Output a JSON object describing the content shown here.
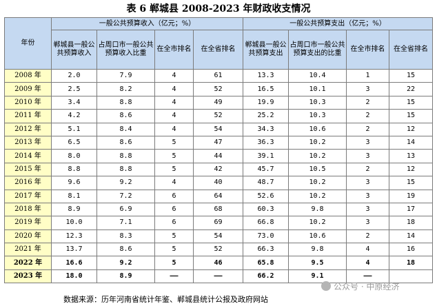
{
  "title": "表 6  郸城县 2008-2023 年财政收支情况",
  "headers": {
    "year": "年份",
    "revenue_group": "一般公共预算收入（亿元；%）",
    "expenditure_group": "一般公共预算支出（亿元；%）",
    "columns": [
      "郸城县一般公共预算收入",
      "占周口市一般公共预算收入比重",
      "在全市排名",
      "在全省排名",
      "郸城县一般公共预算支出",
      "占周口市一般公共预算支出的比重",
      "在全市排名",
      "在全省排名"
    ]
  },
  "rows": [
    {
      "year": "2008 年",
      "cells": [
        "2.0",
        "7.9",
        "4",
        "61",
        "13.3",
        "10.4",
        "1",
        "15"
      ]
    },
    {
      "year": "2009 年",
      "cells": [
        "2.5",
        "8.2",
        "4",
        "52",
        "16.5",
        "10.1",
        "3",
        "22"
      ]
    },
    {
      "year": "2010 年",
      "cells": [
        "3.4",
        "8.8",
        "4",
        "49",
        "19.9",
        "10.3",
        "2",
        "15"
      ]
    },
    {
      "year": "2011 年",
      "cells": [
        "4.2",
        "8.6",
        "4",
        "52",
        "25.2",
        "10.3",
        "2",
        "15"
      ]
    },
    {
      "year": "2012 年",
      "cells": [
        "5.1",
        "8.4",
        "4",
        "54",
        "34.3",
        "10.6",
        "2",
        "12"
      ]
    },
    {
      "year": "2013 年",
      "cells": [
        "6.5",
        "8.6",
        "5",
        "47",
        "36.3",
        "10.2",
        "3",
        "14"
      ]
    },
    {
      "year": "2014 年",
      "cells": [
        "8.0",
        "8.8",
        "5",
        "44",
        "39.1",
        "10.2",
        "3",
        "13"
      ]
    },
    {
      "year": "2015 年",
      "cells": [
        "8.8",
        "8.8",
        "5",
        "42",
        "45.7",
        "10.5",
        "2",
        "12"
      ]
    },
    {
      "year": "2016 年",
      "cells": [
        "9.6",
        "9.2",
        "4",
        "40",
        "48.7",
        "10.2",
        "3",
        "15"
      ]
    },
    {
      "year": "2017 年",
      "cells": [
        "8.1",
        "7.2",
        "6",
        "64",
        "52.6",
        "10.2",
        "3",
        "19"
      ]
    },
    {
      "year": "2018 年",
      "cells": [
        "8.9",
        "6.9",
        "6",
        "68",
        "60.3",
        "9.8",
        "3",
        "17"
      ]
    },
    {
      "year": "2019 年",
      "cells": [
        "10.0",
        "7.1",
        "6",
        "69",
        "66.8",
        "10.2",
        "3",
        "18"
      ]
    },
    {
      "year": "2020 年",
      "cells": [
        "12.3",
        "8.3",
        "5",
        "54",
        "73.0",
        "10.6",
        "2",
        "14"
      ]
    },
    {
      "year": "2021 年",
      "cells": [
        "13.7",
        "8.6",
        "5",
        "52",
        "66.3",
        "9.8",
        "4",
        "16"
      ]
    },
    {
      "year": "2022 年",
      "cells": [
        "16.6",
        "9.2",
        "5",
        "46",
        "65.8",
        "9.5",
        "4",
        "18"
      ]
    },
    {
      "year": "2023 年",
      "cells": [
        "18.0",
        "8.9",
        "——",
        "——",
        "66.2",
        "9.1",
        "——",
        ""
      ]
    }
  ],
  "bold_years": [
    "2022 年",
    "2023 年"
  ],
  "source": "数据来源：历年河南省统计年鉴、郸城县统计公报及政府网站",
  "watermark": "公众号 · 中原经济",
  "colors": {
    "header_bg": "#c5d9f1",
    "year_bg": "#fffec6",
    "border": "#7a7a7a"
  }
}
